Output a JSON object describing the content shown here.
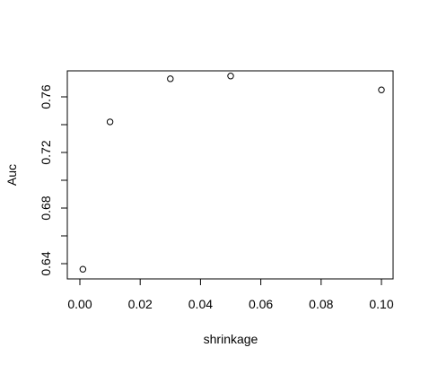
{
  "chart_data": {
    "type": "scatter",
    "title": "",
    "xlabel": "shrinkage",
    "ylabel": "Auc",
    "xlim": [
      0.0,
      0.1
    ],
    "ylim": [
      0.63,
      0.78
    ],
    "x_ticks": [
      0.0,
      0.02,
      0.04,
      0.06,
      0.08,
      0.1
    ],
    "x_tick_labels": [
      "0.00",
      "0.02",
      "0.04",
      "0.06",
      "0.08",
      "0.10"
    ],
    "y_ticks": [
      0.64,
      0.68,
      0.72,
      0.76
    ],
    "y_tick_labels": [
      "0.64",
      "0.68",
      "0.72",
      "0.76"
    ],
    "grid": false,
    "series": [
      {
        "x": [
          0.001,
          0.01,
          0.03,
          0.05,
          0.1
        ],
        "y": [
          0.636,
          0.742,
          0.773,
          0.775,
          0.765
        ]
      }
    ]
  }
}
